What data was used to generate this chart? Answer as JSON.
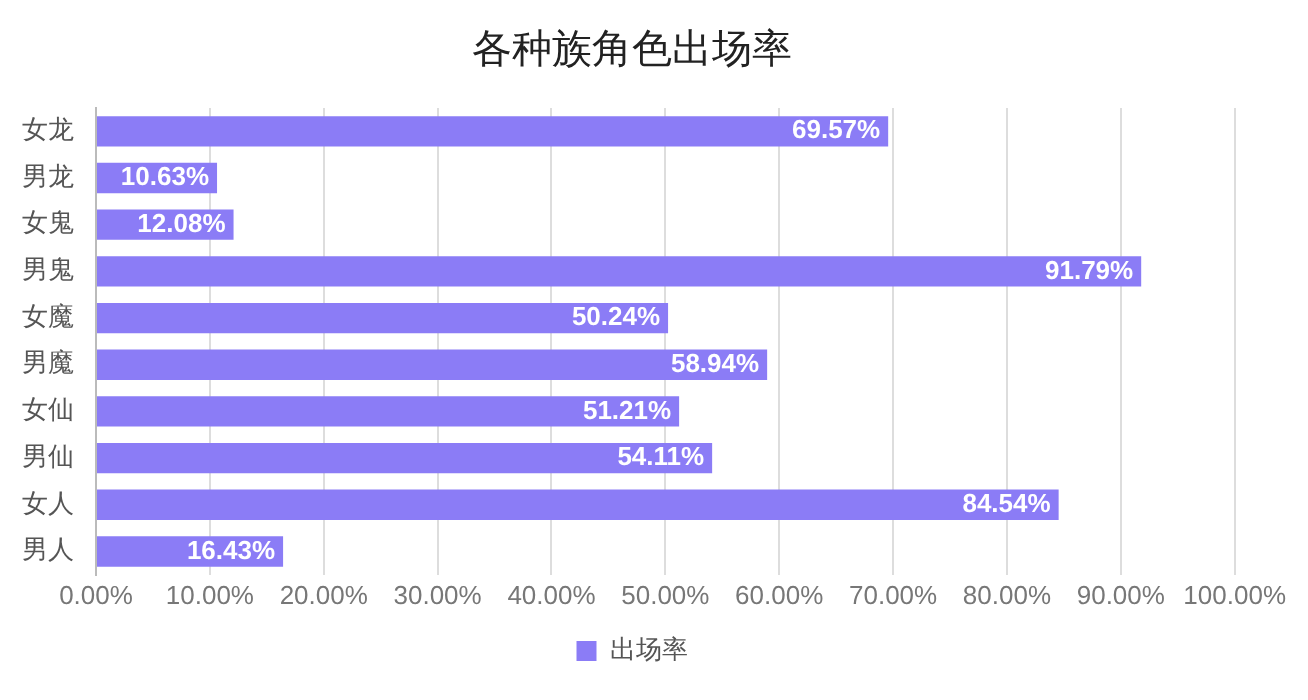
{
  "chart_data": {
    "type": "bar",
    "title": "各种族角色出场率",
    "orientation": "horizontal",
    "categories": [
      "女龙",
      "男龙",
      "女鬼",
      "男鬼",
      "女魔",
      "男魔",
      "女仙",
      "男仙",
      "女人",
      "男人"
    ],
    "series": [
      {
        "name": "出场率",
        "color": "#8b7cf6",
        "values": [
          69.57,
          10.63,
          12.08,
          91.79,
          50.24,
          58.94,
          51.21,
          54.11,
          84.54,
          16.43
        ],
        "value_labels": [
          "69.57%",
          "10.63%",
          "12.08%",
          "91.79%",
          "50.24%",
          "58.94%",
          "51.21%",
          "54.11%",
          "84.54%",
          "16.43%"
        ]
      }
    ],
    "xlim": [
      0,
      100
    ],
    "xticks": [
      {
        "value": 0,
        "label": "0.00%"
      },
      {
        "value": 10,
        "label": "10.00%"
      },
      {
        "value": 20,
        "label": "20.00%"
      },
      {
        "value": 30,
        "label": "30.00%"
      },
      {
        "value": 40,
        "label": "40.00%"
      },
      {
        "value": 50,
        "label": "50.00%"
      },
      {
        "value": 60,
        "label": "60.00%"
      },
      {
        "value": 70,
        "label": "70.00%"
      },
      {
        "value": 80,
        "label": "80.00%"
      },
      {
        "value": 90,
        "label": "90.00%"
      },
      {
        "value": 100,
        "label": "100.00%"
      }
    ],
    "grid": "x",
    "legend": "bottom"
  }
}
